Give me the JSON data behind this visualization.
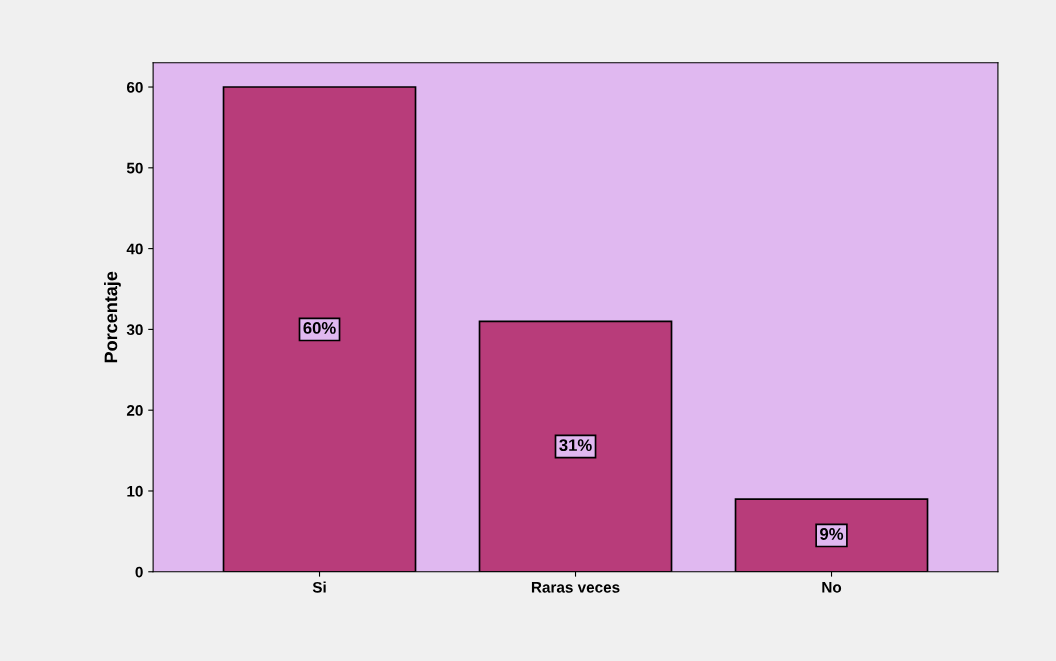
{
  "chart_data": {
    "type": "bar",
    "ylabel": "Porcentaje",
    "categories": [
      "Si",
      "Raras veces",
      "No"
    ],
    "values": [
      60,
      31,
      9
    ],
    "value_labels": [
      "60%",
      "31%",
      "9%"
    ],
    "color": "#b83c7a",
    "ylim": [
      0,
      63
    ],
    "yticks": [
      0,
      10,
      20,
      30,
      40,
      50,
      60
    ],
    "grid": false
  }
}
